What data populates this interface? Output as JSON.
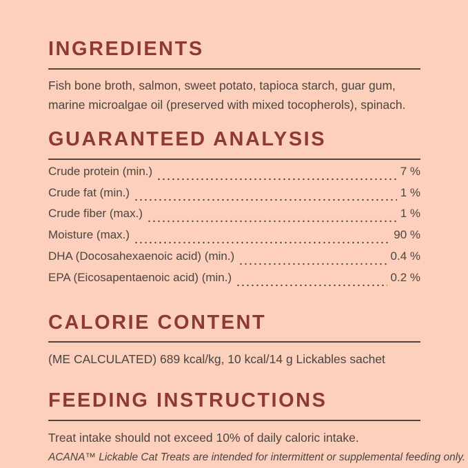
{
  "theme": {
    "background": "#fcd0bc",
    "heading_color": "#8d3a33",
    "text_color": "#4c443f",
    "rule_color": "#55453e"
  },
  "sections": {
    "ingredients": {
      "title": "INGREDIENTS",
      "body": "Fish bone broth, salmon, sweet potato, tapioca starch, guar gum, marine microalgae oil (preserved with mixed tocopherols), spinach."
    },
    "guaranteed_analysis": {
      "title": "GUARANTEED ANALYSIS",
      "rows": [
        {
          "label": "Crude protein (min.)",
          "value": "7 %"
        },
        {
          "label": "Crude fat (min.)",
          "value": "1 %"
        },
        {
          "label": "Crude fiber (max.)",
          "value": "1 %"
        },
        {
          "label": "Moisture (max.)",
          "value": "90 %"
        },
        {
          "label": "DHA (Docosahexaenoic acid) (min.)",
          "value": "0.4 %"
        },
        {
          "label": "EPA (Eicosapentaenoic acid) (min.)",
          "value": "0.2 %"
        }
      ]
    },
    "calorie_content": {
      "title": "CALORIE CONTENT",
      "body": "(ME CALCULATED) 689 kcal/kg, 10 kcal/14 g Lickables sachet"
    },
    "feeding_instructions": {
      "title": "FEEDING INSTRUCTIONS",
      "body": "Treat intake should not exceed 10% of daily caloric intake.",
      "footnote": "ACANA™ Lickable Cat Treats are intended for intermittent or supplemental feeding only."
    }
  }
}
